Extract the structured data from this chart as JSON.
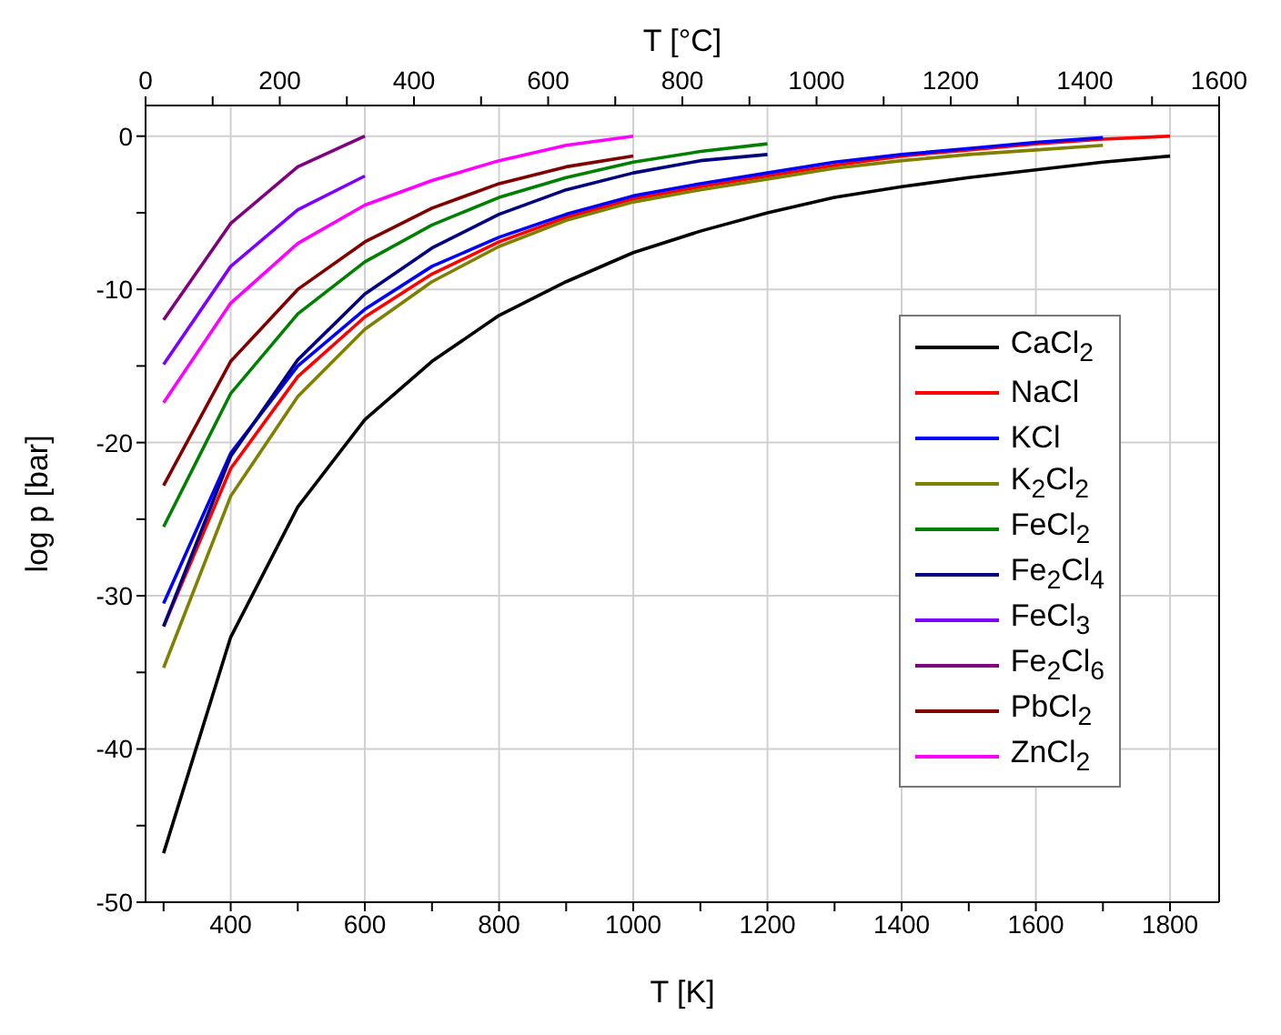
{
  "chart_data": {
    "type": "line",
    "xlabel": "T [K]",
    "ylabel": "log p [bar]",
    "x2label": "T [°C]",
    "xlim": [
      273.15,
      1873.15
    ],
    "xticks": [
      {
        "value": 300,
        "label": null
      },
      400,
      {
        "value": 500,
        "label": null
      },
      600,
      {
        "value": 700,
        "label": null
      },
      800,
      {
        "value": 900,
        "label": null
      },
      1000,
      {
        "value": 1100,
        "label": null
      },
      1200,
      {
        "value": 1300,
        "label": null
      },
      1400,
      {
        "value": 1500,
        "label": null
      },
      1600,
      {
        "value": 1700,
        "label": null
      },
      1800
    ],
    "x2lim": [
      0,
      1600
    ],
    "x2ticks": [
      0,
      {
        "value": 100,
        "label": null
      },
      200,
      {
        "value": 300,
        "label": null
      },
      400,
      {
        "value": 500,
        "label": null
      },
      600,
      {
        "value": 700,
        "label": null
      },
      800,
      {
        "value": 900,
        "label": null
      },
      1000,
      {
        "value": 1100,
        "label": null
      },
      1200,
      {
        "value": 1300,
        "label": null
      },
      1400,
      {
        "value": 1500,
        "label": null
      },
      1600
    ],
    "ylim": [
      -50,
      2
    ],
    "yticks": [
      -50,
      {
        "value": -45,
        "label": null
      },
      -40,
      {
        "value": -35,
        "label": null
      },
      -30,
      {
        "value": -25,
        "label": null
      },
      -20,
      {
        "value": -15,
        "label": null
      },
      -10,
      {
        "value": -5,
        "label": null
      },
      0
    ],
    "grid": true,
    "legend": "right",
    "line_style": "solid",
    "marker": "none",
    "series": [
      {
        "name": "CaCl$_{2}$",
        "color": "#000000",
        "x": [
          300,
          400,
          500,
          600,
          700,
          800,
          900,
          1000,
          1100,
          1200,
          1300,
          1400,
          1500,
          1600,
          1700,
          1800
        ],
        "values": [
          -46.8,
          -32.7,
          -24.2,
          -18.5,
          -14.7,
          -11.7,
          -9.5,
          -7.6,
          -6.2,
          -5.0,
          -4.0,
          -3.3,
          -2.7,
          -2.2,
          -1.7,
          -1.3
        ]
      },
      {
        "name": "NaCl",
        "color": "#ff0000",
        "x": [
          300,
          400,
          500,
          600,
          700,
          800,
          900,
          1000,
          1100,
          1200,
          1300,
          1400,
          1500,
          1600,
          1700,
          1800
        ],
        "values": [
          -32.0,
          -21.7,
          -15.7,
          -11.8,
          -9.0,
          -6.9,
          -5.3,
          -4.1,
          -3.3,
          -2.6,
          -1.9,
          -1.3,
          -0.9,
          -0.5,
          -0.2,
          0
        ]
      },
      {
        "name": "KCl",
        "color": "#0000ff",
        "x": [
          300,
          400,
          500,
          600,
          700,
          800,
          900,
          1000,
          1100,
          1200,
          1300,
          1400,
          1500,
          1600,
          1700
        ],
        "values": [
          -30.5,
          -20.7,
          -15.0,
          -11.3,
          -8.5,
          -6.6,
          -5.1,
          -3.9,
          -3.1,
          -2.4,
          -1.7,
          -1.2,
          -0.8,
          -0.4,
          -0.1
        ]
      },
      {
        "name": "K$_{2}$Cl$_{2}$",
        "color": "#808000",
        "x": [
          300,
          400,
          500,
          600,
          700,
          800,
          900,
          1000,
          1100,
          1200,
          1300,
          1400,
          1500,
          1600,
          1700
        ],
        "values": [
          -34.7,
          -23.5,
          -17.0,
          -12.6,
          -9.5,
          -7.2,
          -5.5,
          -4.3,
          -3.5,
          -2.8,
          -2.1,
          -1.6,
          -1.2,
          -0.9,
          -0.6
        ]
      },
      {
        "name": "FeCl$_{2}$",
        "color": "#008000",
        "x": [
          300,
          400,
          500,
          600,
          700,
          800,
          900,
          1000,
          1100,
          1200
        ],
        "values": [
          -25.5,
          -16.8,
          -11.6,
          -8.2,
          -5.8,
          -4.0,
          -2.7,
          -1.7,
          -1.0,
          -0.5
        ]
      },
      {
        "name": "Fe$_{2}$Cl$_{4}$",
        "color": "#000080",
        "x": [
          300,
          400,
          500,
          600,
          700,
          800,
          900,
          1000,
          1100,
          1200
        ],
        "values": [
          -32.0,
          -20.9,
          -14.6,
          -10.3,
          -7.3,
          -5.1,
          -3.5,
          -2.4,
          -1.6,
          -1.2
        ]
      },
      {
        "name": "FeCl$_{3}$",
        "color": "#8000ff",
        "x": [
          300,
          400,
          500,
          600
        ],
        "values": [
          -14.9,
          -8.5,
          -4.8,
          -2.6
        ]
      },
      {
        "name": "Fe$_{2}$Cl$_{6}$",
        "color": "#800080",
        "x": [
          300,
          400,
          500,
          600
        ],
        "values": [
          -12.0,
          -5.7,
          -2.0,
          0
        ]
      },
      {
        "name": "PbCl$_{2}$",
        "color": "#800000",
        "x": [
          300,
          400,
          500,
          600,
          700,
          800,
          900,
          1000
        ],
        "values": [
          -22.8,
          -14.7,
          -10.0,
          -6.9,
          -4.7,
          -3.1,
          -2.0,
          -1.3
        ]
      },
      {
        "name": "ZnCl$_{2}$",
        "color": "#ff00ff",
        "x": [
          300,
          400,
          500,
          600,
          700,
          800,
          900,
          1000
        ],
        "values": [
          -17.4,
          -10.9,
          -7.0,
          -4.5,
          -2.9,
          -1.6,
          -0.6,
          0
        ]
      }
    ]
  }
}
